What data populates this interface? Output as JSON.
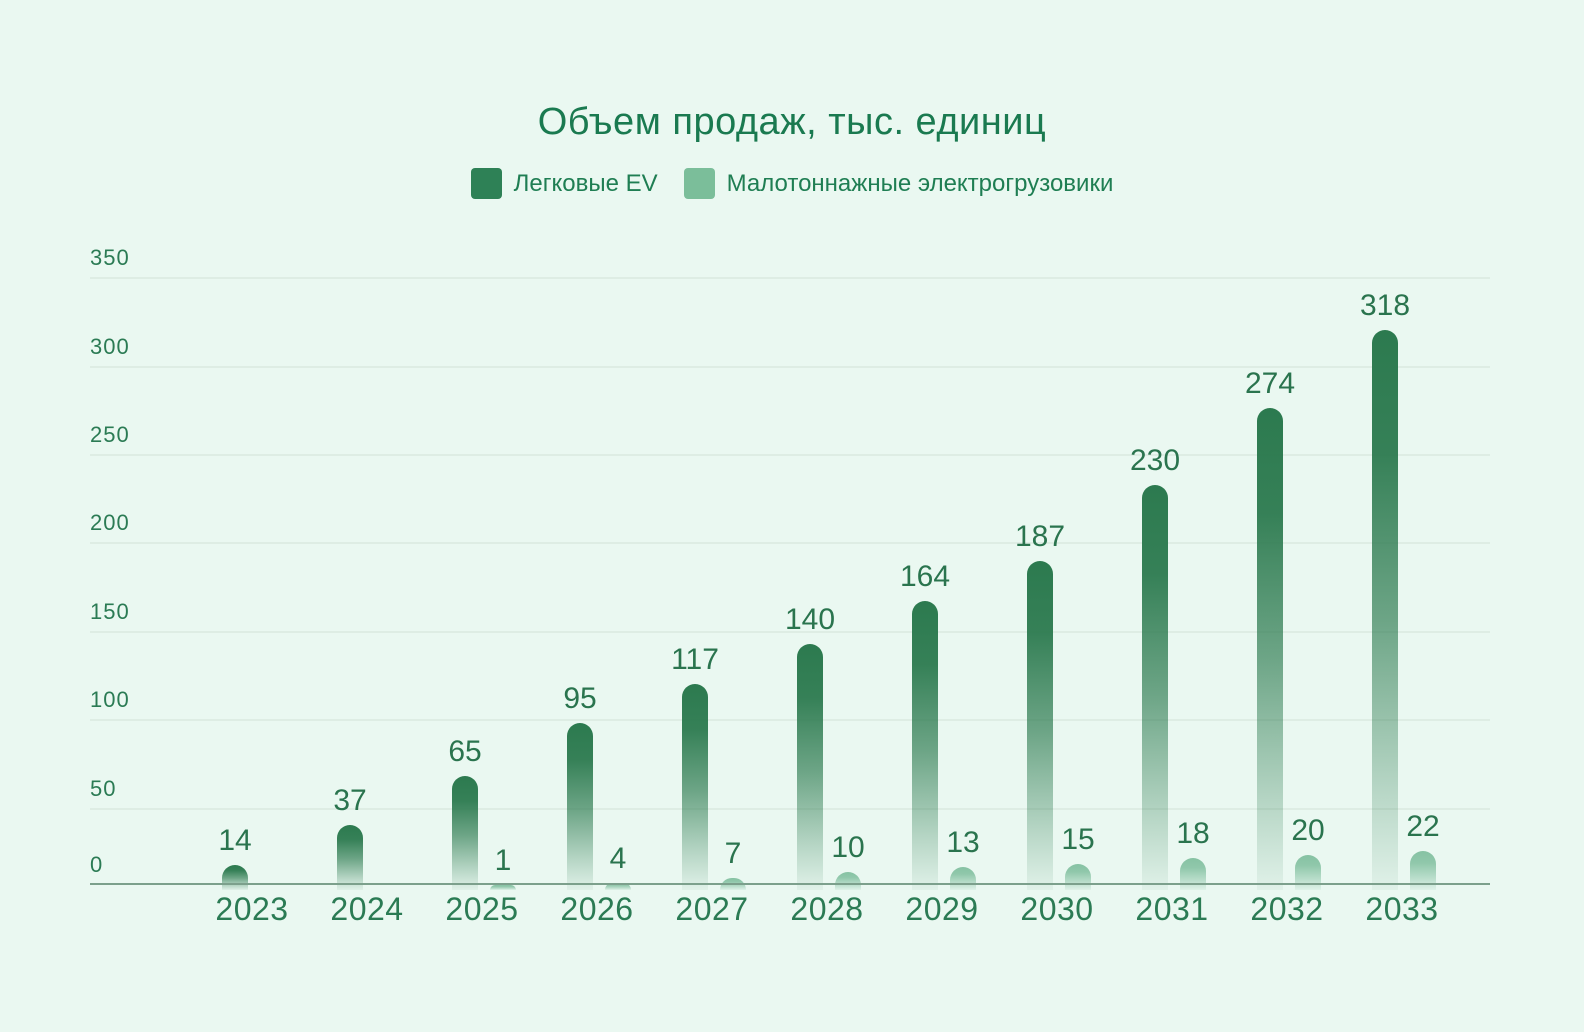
{
  "header": {
    "title": "Объем продаж, тыс. единиц"
  },
  "chart_data": {
    "type": "bar",
    "title": "Объем продаж, тыс. единиц",
    "categories": [
      "2023",
      "2024",
      "2025",
      "2026",
      "2027",
      "2028",
      "2029",
      "2030",
      "2031",
      "2032",
      "2033"
    ],
    "series": [
      {
        "name": "Легковые EV",
        "color": "#2E8156",
        "values": [
          14,
          37,
          65,
          95,
          117,
          140,
          164,
          187,
          230,
          274,
          318
        ]
      },
      {
        "name": "Малотоннажные электрогрузовики",
        "color": "#7BBE9A",
        "values": [
          null,
          null,
          1,
          4,
          7,
          10,
          13,
          15,
          18,
          20,
          22
        ]
      }
    ],
    "ylim": [
      0,
      350
    ],
    "yticks": [
      0,
      50,
      100,
      150,
      200,
      250,
      300,
      350
    ],
    "grid": true,
    "legend_position": "top",
    "value_labels": true,
    "bar_style": "rounded-top-gradient-fade"
  },
  "colors": {
    "background": "#EAF8F1",
    "title_text": "#1A7A50",
    "legend_text": "#1F7E53",
    "tick_label": "#2B7B54",
    "value_label": "#2A744E",
    "gridline": "#DEEDE4",
    "axis_line": "#7CA08C",
    "series1_bar_top": "#2C7A4F",
    "series2_bar_top": "#86C2A3"
  }
}
